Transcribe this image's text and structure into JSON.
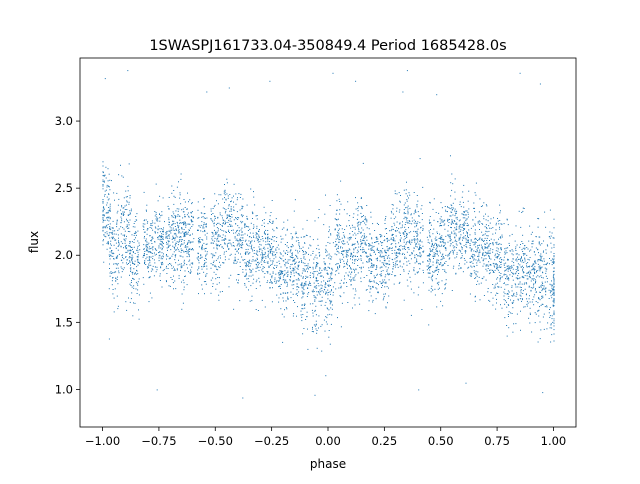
{
  "chart_data": {
    "type": "scatter",
    "title": "1SWASPJ161733.04-350849.4 Period 1685428.0s",
    "xlabel": "phase",
    "ylabel": "flux",
    "xlim": [
      -1.1,
      1.1
    ],
    "ylim": [
      0.72,
      3.47
    ],
    "xticks": [
      -1.0,
      -0.75,
      -0.5,
      -0.25,
      0.0,
      0.25,
      0.5,
      0.75,
      1.0
    ],
    "xtick_labels": [
      "−1.00",
      "−0.75",
      "−0.50",
      "−0.25",
      "0.00",
      "0.25",
      "0.50",
      "0.75",
      "1.00"
    ],
    "yticks": [
      1.0,
      1.5,
      2.0,
      2.5,
      3.0
    ],
    "ytick_labels": [
      "1.0",
      "1.5",
      "2.0",
      "2.5",
      "3.0"
    ],
    "grid": false,
    "marker_color": "#1f77b4",
    "series": [
      {
        "points_summary": "phase-folded light curve repeated over two cycles (-1 to 1); vertical clusters of points",
        "clusters": [
          {
            "x": -0.99,
            "center": 2.35,
            "spread": 0.3
          },
          {
            "x": -0.95,
            "center": 2.05,
            "spread": 0.35
          },
          {
            "x": -0.9,
            "center": 2.15,
            "spread": 0.35
          },
          {
            "x": -0.86,
            "center": 1.95,
            "spread": 0.3
          },
          {
            "x": -0.8,
            "center": 2.05,
            "spread": 0.25
          },
          {
            "x": -0.75,
            "center": 2.1,
            "spread": 0.25
          },
          {
            "x": -0.7,
            "center": 2.1,
            "spread": 0.3
          },
          {
            "x": -0.66,
            "center": 2.15,
            "spread": 0.35
          },
          {
            "x": -0.62,
            "center": 2.1,
            "spread": 0.3
          },
          {
            "x": -0.56,
            "center": 2.05,
            "spread": 0.3
          },
          {
            "x": -0.5,
            "center": 2.1,
            "spread": 0.3
          },
          {
            "x": -0.45,
            "center": 2.2,
            "spread": 0.3
          },
          {
            "x": -0.4,
            "center": 2.15,
            "spread": 0.3
          },
          {
            "x": -0.35,
            "center": 2.05,
            "spread": 0.3
          },
          {
            "x": -0.3,
            "center": 2.0,
            "spread": 0.3
          },
          {
            "x": -0.25,
            "center": 2.0,
            "spread": 0.3
          },
          {
            "x": -0.2,
            "center": 1.85,
            "spread": 0.3
          },
          {
            "x": -0.15,
            "center": 1.9,
            "spread": 0.3
          },
          {
            "x": -0.1,
            "center": 1.85,
            "spread": 0.3
          },
          {
            "x": -0.05,
            "center": 1.8,
            "spread": 0.35
          },
          {
            "x": 0.0,
            "center": 1.85,
            "spread": 0.4
          },
          {
            "x": 0.05,
            "center": 2.05,
            "spread": 0.35
          },
          {
            "x": 0.1,
            "center": 2.0,
            "spread": 0.3
          },
          {
            "x": 0.15,
            "center": 2.1,
            "spread": 0.3
          },
          {
            "x": 0.2,
            "center": 1.95,
            "spread": 0.3
          },
          {
            "x": 0.25,
            "center": 1.95,
            "spread": 0.25
          },
          {
            "x": 0.3,
            "center": 2.1,
            "spread": 0.3
          },
          {
            "x": 0.35,
            "center": 2.15,
            "spread": 0.35
          },
          {
            "x": 0.4,
            "center": 2.1,
            "spread": 0.3
          },
          {
            "x": 0.46,
            "center": 2.0,
            "spread": 0.3
          },
          {
            "x": 0.5,
            "center": 2.05,
            "spread": 0.3
          },
          {
            "x": 0.55,
            "center": 2.2,
            "spread": 0.3
          },
          {
            "x": 0.6,
            "center": 2.15,
            "spread": 0.3
          },
          {
            "x": 0.65,
            "center": 2.05,
            "spread": 0.3
          },
          {
            "x": 0.7,
            "center": 2.05,
            "spread": 0.3
          },
          {
            "x": 0.75,
            "center": 1.95,
            "spread": 0.3
          },
          {
            "x": 0.8,
            "center": 1.85,
            "spread": 0.3
          },
          {
            "x": 0.85,
            "center": 1.9,
            "spread": 0.3
          },
          {
            "x": 0.9,
            "center": 1.85,
            "spread": 0.3
          },
          {
            "x": 0.95,
            "center": 1.85,
            "spread": 0.35
          },
          {
            "x": 1.0,
            "center": 1.8,
            "spread": 0.35
          }
        ],
        "outliers": [
          [
            -0.99,
            3.32
          ],
          [
            -0.89,
            3.38
          ],
          [
            -0.76,
            1.0
          ],
          [
            -0.54,
            3.22
          ],
          [
            -0.38,
            0.94
          ],
          [
            -0.26,
            3.3
          ],
          [
            0.02,
            3.36
          ],
          [
            0.12,
            3.3
          ],
          [
            0.33,
            3.22
          ],
          [
            0.35,
            3.38
          ],
          [
            0.4,
            1.0
          ],
          [
            0.48,
            3.2
          ],
          [
            0.85,
            3.36
          ],
          [
            0.94,
            3.28
          ],
          [
            0.95,
            0.98
          ],
          [
            -0.06,
            0.96
          ],
          [
            0.61,
            1.05
          ],
          [
            -0.44,
            3.25
          ]
        ]
      }
    ]
  }
}
